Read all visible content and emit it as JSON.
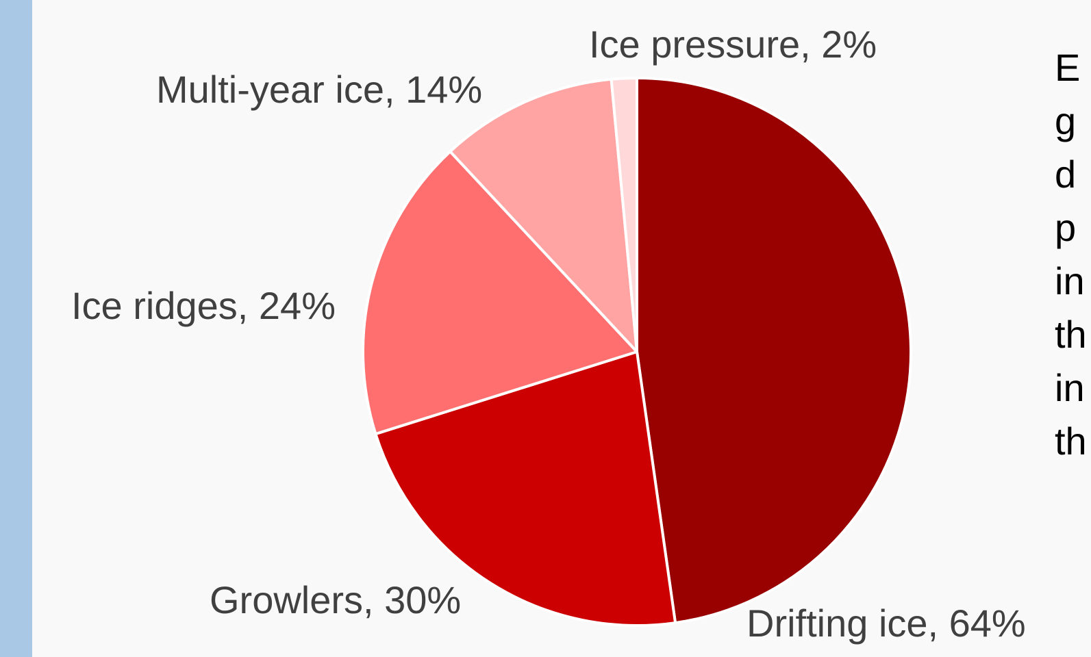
{
  "chart_data": {
    "type": "pie",
    "title": "",
    "slices": [
      {
        "name": "Drifting ice",
        "value": 64,
        "label": "Drifting ice, 64%",
        "color": "#990000"
      },
      {
        "name": "Growlers",
        "value": 30,
        "label": "Growlers, 30%",
        "color": "#cc0000"
      },
      {
        "name": "Ice ridges",
        "value": 24,
        "label": "Ice ridges, 24%",
        "color": "#ff6f6f"
      },
      {
        "name": "Multi-year ice",
        "value": 14,
        "label": "Multi-year ice, 14%",
        "color": "#ffa3a3"
      },
      {
        "name": "Ice pressure",
        "value": 2,
        "label": "Ice pressure, 2%",
        "color": "#ffd9d9"
      }
    ],
    "legend": "none",
    "start_angle_deg": 0,
    "direction": "clockwise"
  },
  "side_text": {
    "lines": [
      "E",
      "g",
      "d",
      "p",
      "in",
      "th",
      "in",
      "th"
    ]
  },
  "colors": {
    "background": "#f9f9f9",
    "left_bar": "#a8c8e6",
    "label_text": "#404040",
    "slice_border": "#ffffff"
  }
}
